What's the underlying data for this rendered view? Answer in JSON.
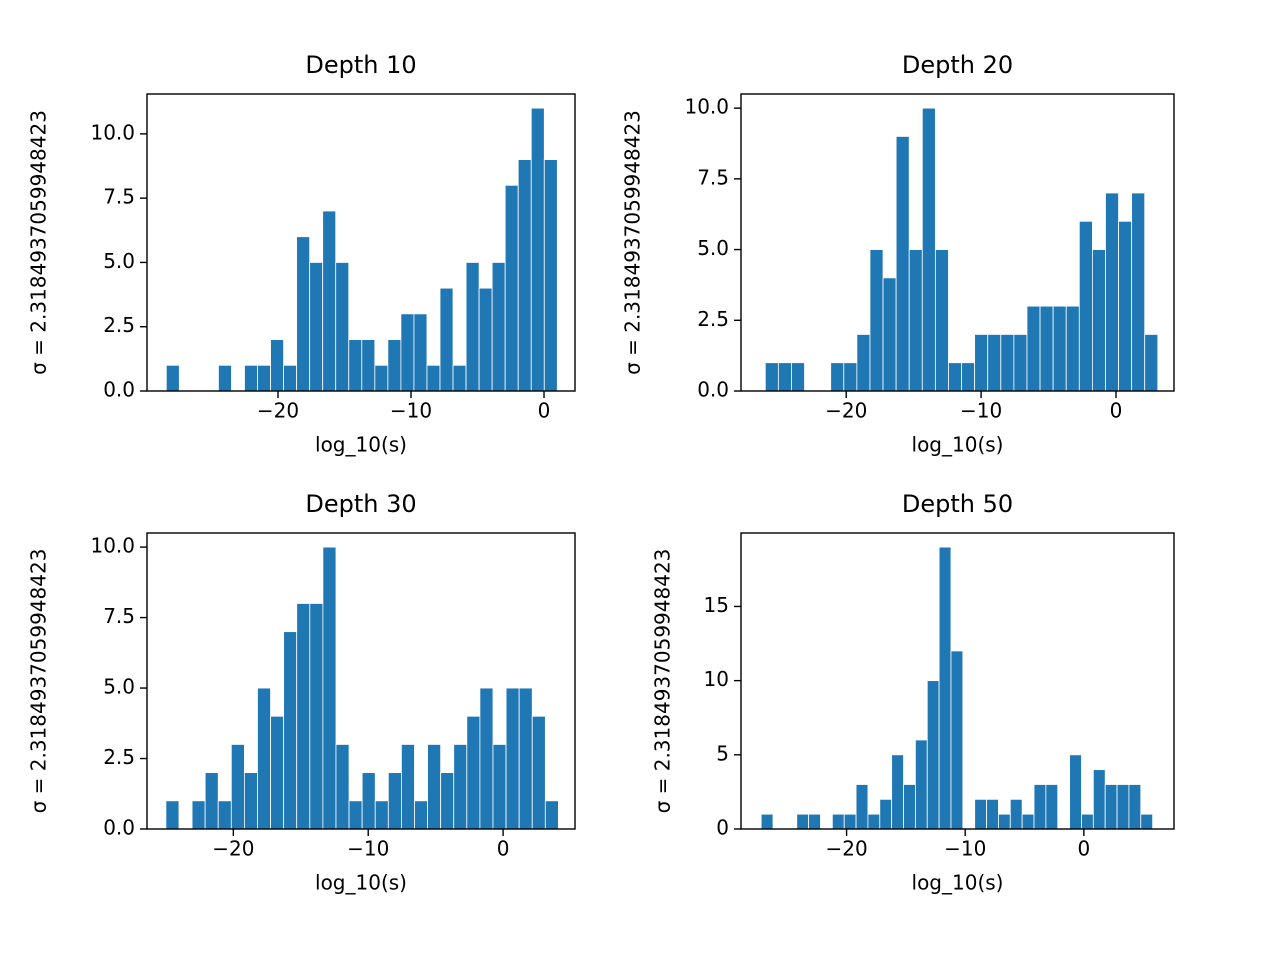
{
  "chart_data": [
    {
      "type": "histogram",
      "title": "Depth 10",
      "xlabel": "log_10(s)",
      "ylabel": "σ = 2.3184937059948423",
      "color": "#1f77b4",
      "bins": [
        -28.4,
        -27.42,
        -26.44,
        -25.46,
        -24.48,
        -23.5,
        -22.52,
        -21.54,
        -20.56,
        -19.58,
        -18.6,
        -17.62,
        -16.64,
        -15.66,
        -14.68,
        -13.7,
        -12.72,
        -11.74,
        -10.76,
        -9.78,
        -8.8,
        -7.82,
        -6.84,
        -5.86,
        -4.88,
        -3.9,
        -2.92,
        -1.94,
        -0.96,
        0.02,
        1.0
      ],
      "values": [
        1,
        0,
        0,
        0,
        1,
        0,
        1,
        1,
        2,
        1,
        6,
        5,
        7,
        5,
        2,
        2,
        1,
        2,
        3,
        3,
        1,
        4,
        1,
        5,
        4,
        5,
        8,
        9,
        11,
        9
      ],
      "xlim": [
        -29.85,
        2.33
      ],
      "ylim": [
        0,
        11.55
      ],
      "xticks": [
        {
          "value": -20,
          "label": "−20"
        },
        {
          "value": -10,
          "label": "−10"
        },
        0
      ],
      "yticks": [
        {
          "value": 0,
          "label": "0.0"
        },
        2.5,
        {
          "value": 5,
          "label": "5.0"
        },
        7.5,
        {
          "value": 10,
          "label": "10.0"
        }
      ]
    },
    {
      "type": "histogram",
      "title": "Depth 20",
      "xlabel": "log_10(s)",
      "ylabel": "σ = 2.3184937059948423",
      "color": "#1f77b4",
      "bins": [
        -26,
        -25.03,
        -24.06,
        -23.09,
        -22.12,
        -21.15,
        -20.18,
        -19.21,
        -18.24,
        -17.27,
        -16.3,
        -15.33,
        -14.36,
        -13.39,
        -12.42,
        -11.45,
        -10.48,
        -9.51,
        -8.54,
        -7.57,
        -6.6,
        -5.63,
        -4.66,
        -3.69,
        -2.72,
        -1.75,
        -0.78,
        0.19,
        1.16,
        2.13,
        3.1
      ],
      "values": [
        1,
        1,
        1,
        0,
        0,
        1,
        1,
        2,
        5,
        4,
        9,
        5,
        10,
        5,
        1,
        1,
        2,
        2,
        2,
        2,
        3,
        3,
        3,
        3,
        6,
        5,
        7,
        6,
        7,
        2
      ],
      "xlim": [
        -27.8,
        4.3
      ],
      "ylim": [
        0,
        10.5
      ],
      "xticks": [
        {
          "value": -20,
          "label": "−20"
        },
        {
          "value": -10,
          "label": "−10"
        },
        0
      ],
      "yticks": [
        {
          "value": 0,
          "label": "0.0"
        },
        2.5,
        {
          "value": 5,
          "label": "5.0"
        },
        7.5,
        {
          "value": 10,
          "label": "10.0"
        }
      ]
    },
    {
      "type": "histogram",
      "title": "Depth 30",
      "xlabel": "log_10(s)",
      "ylabel": "σ = 2.3184937059948423",
      "color": "#1f77b4",
      "bins": [
        -25,
        -24.03,
        -23.06,
        -22.09,
        -21.12,
        -20.15,
        -19.18,
        -18.21,
        -17.24,
        -16.27,
        -15.3,
        -14.33,
        -13.36,
        -12.39,
        -11.42,
        -10.45,
        -9.48,
        -8.51,
        -7.54,
        -6.57,
        -5.6,
        -4.63,
        -3.66,
        -2.69,
        -1.72,
        -0.75,
        0.22,
        1.19,
        2.16,
        3.13,
        4.1
      ],
      "values": [
        1,
        0,
        1,
        2,
        1,
        3,
        2,
        5,
        4,
        7,
        8,
        8,
        10,
        3,
        1,
        2,
        1,
        2,
        3,
        1,
        3,
        2,
        3,
        4,
        5,
        3,
        5,
        5,
        4,
        1
      ],
      "xlim": [
        -26.4,
        5.33
      ],
      "ylim": [
        0,
        10.5
      ],
      "xticks": [
        {
          "value": -20,
          "label": "−20"
        },
        {
          "value": -10,
          "label": "−10"
        },
        0
      ],
      "yticks": [
        {
          "value": 0,
          "label": "0.0"
        },
        2.5,
        {
          "value": 5,
          "label": "5.0"
        },
        7.5,
        {
          "value": 10,
          "label": "10.0"
        }
      ]
    },
    {
      "type": "histogram",
      "title": "Depth 50",
      "xlabel": "log_10(s)",
      "ylabel": "σ = 2.3184937059948423",
      "color": "#1f77b4",
      "bins": [
        -27.2,
        -26.2,
        -25.2,
        -24.2,
        -23.2,
        -22.2,
        -21.2,
        -20.2,
        -19.2,
        -18.2,
        -17.2,
        -16.2,
        -15.2,
        -14.2,
        -13.2,
        -12.2,
        -11.2,
        -10.2,
        -9.2,
        -8.2,
        -7.2,
        -6.2,
        -5.2,
        -4.2,
        -3.2,
        -2.2,
        -1.2,
        -0.2,
        0.8,
        1.8,
        2.8,
        3.8,
        4.8,
        5.8
      ],
      "values": [
        1,
        0,
        0,
        1,
        1,
        0,
        1,
        1,
        3,
        1,
        2,
        5,
        3,
        6,
        10,
        19,
        12,
        0,
        2,
        2,
        1,
        2,
        1,
        3,
        3,
        0,
        5,
        1,
        4,
        3,
        3,
        3,
        1
      ],
      "xlim": [
        -28.9,
        7.6
      ],
      "ylim": [
        0,
        19.95
      ],
      "xticks": [
        {
          "value": -20,
          "label": "−20"
        },
        {
          "value": -10,
          "label": "−10"
        },
        0
      ],
      "yticks": [
        0,
        5,
        10,
        15
      ]
    }
  ]
}
